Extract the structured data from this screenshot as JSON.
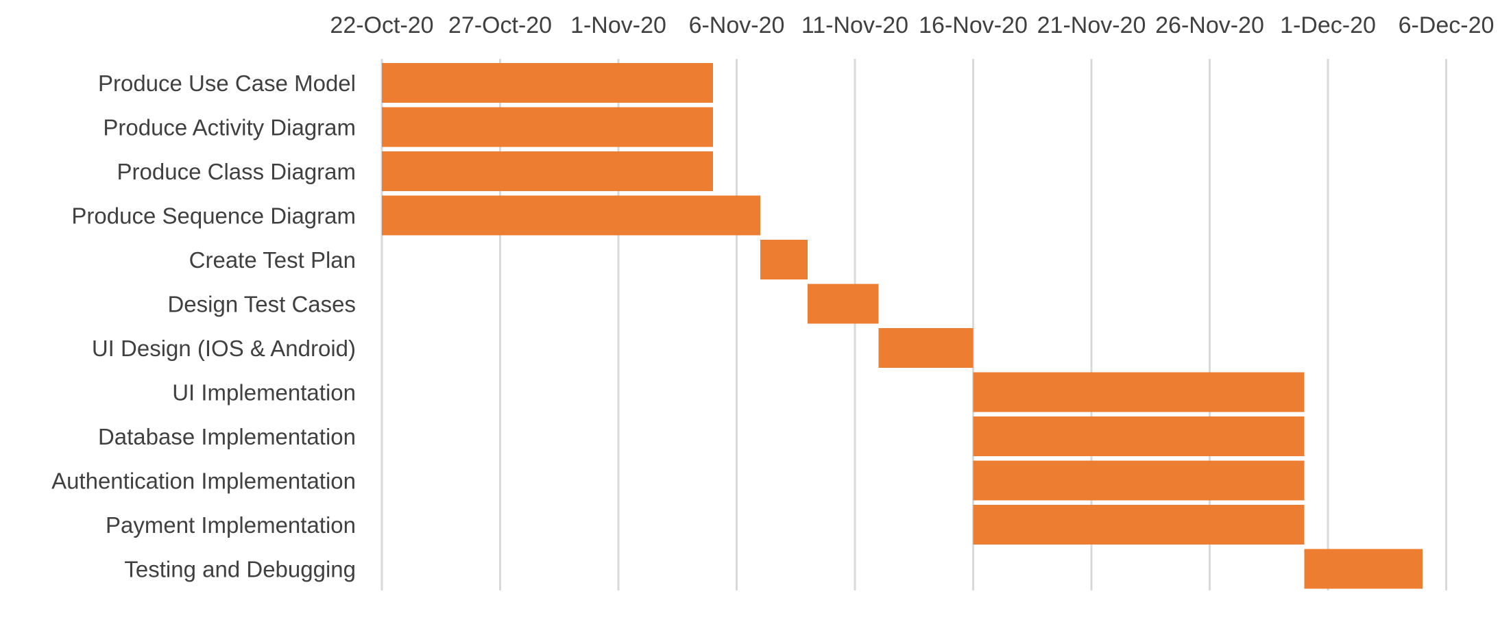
{
  "chart_data": {
    "type": "bar",
    "orientation": "horizontal",
    "stacked": true,
    "title": "",
    "xlabel": "",
    "ylabel": "",
    "x_tick_labels": [
      "22-Oct-20",
      "27-Oct-20",
      "1-Nov-20",
      "6-Nov-20",
      "11-Nov-20",
      "16-Nov-20",
      "21-Nov-20",
      "26-Nov-20",
      "1-Dec-20",
      "6-Dec-20"
    ],
    "x_ticks": [
      "2020-10-22",
      "2020-10-27",
      "2020-11-01",
      "2020-11-06",
      "2020-11-11",
      "2020-11-16",
      "2020-11-21",
      "2020-11-26",
      "2020-12-01",
      "2020-12-06"
    ],
    "xlim": [
      "2020-10-22",
      "2020-12-06"
    ],
    "x_axis_position": "top",
    "grid": "vertical",
    "legend": "none",
    "bar_color": "#ED7D31",
    "categories": [
      "Produce Use Case Model",
      "Produce Activity Diagram",
      "Produce Class Diagram",
      "Produce Sequence Diagram",
      "Create Test Plan",
      "Design Test Cases",
      "UI Design (IOS & Android)",
      "UI Implementation",
      "Database Implementation",
      "Authentication Implementation",
      "Payment Implementation",
      "Testing and Debugging"
    ],
    "start": [
      "2020-10-22",
      "2020-10-22",
      "2020-10-22",
      "2020-10-22",
      "2020-11-07",
      "2020-11-09",
      "2020-11-12",
      "2020-11-16",
      "2020-11-16",
      "2020-11-16",
      "2020-11-16",
      "2020-11-30"
    ],
    "end": [
      "2020-11-05",
      "2020-11-05",
      "2020-11-05",
      "2020-11-07",
      "2020-11-09",
      "2020-11-12",
      "2020-11-16",
      "2020-11-30",
      "2020-11-30",
      "2020-11-30",
      "2020-11-30",
      "2020-12-05"
    ],
    "duration_days": [
      14,
      14,
      14,
      16,
      2,
      3,
      4,
      14,
      14,
      14,
      14,
      5
    ]
  }
}
